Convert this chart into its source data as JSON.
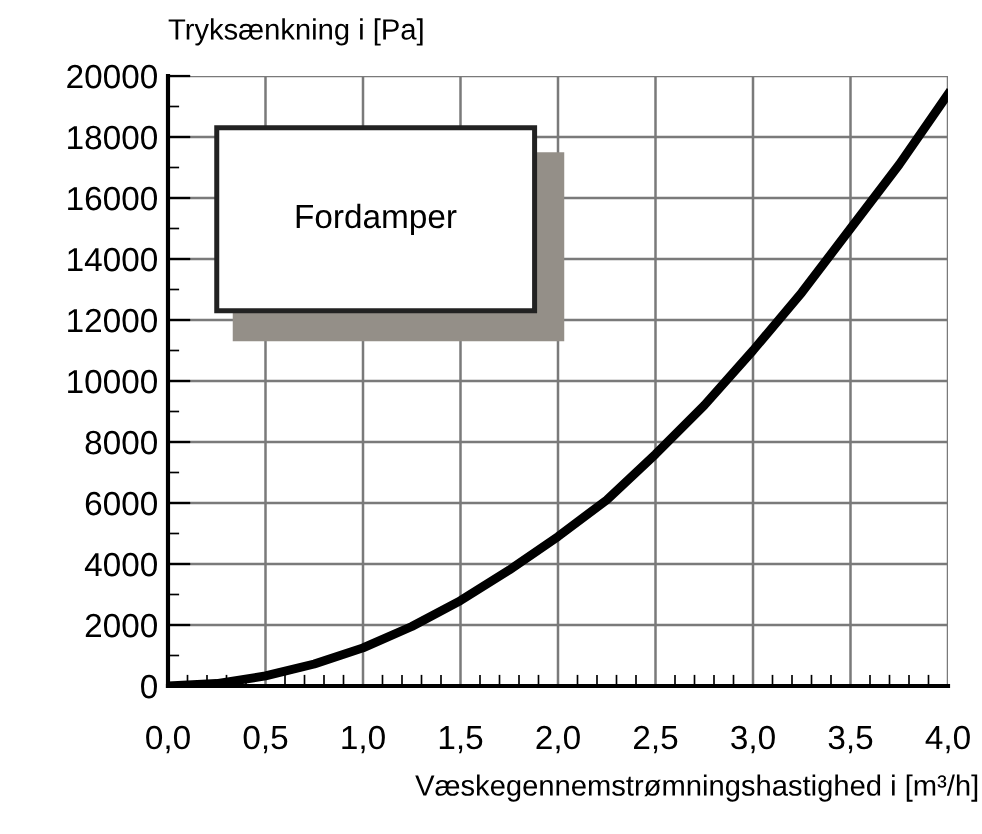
{
  "chart_data": {
    "type": "line",
    "xlabel": "Væskegennemstrømningshastighed i [m³/h]",
    "ylabel": "Tryksænkning i [Pa]",
    "annotations": [
      "Fordamper"
    ],
    "x": [
      0,
      0.25,
      0.5,
      0.75,
      1.0,
      1.25,
      1.5,
      1.75,
      2.0,
      2.25,
      2.5,
      2.75,
      3.0,
      3.25,
      3.5,
      3.75,
      4.0
    ],
    "series": [
      {
        "color": "#000000",
        "values": [
          0,
          80,
          330,
          720,
          1250,
          1950,
          2800,
          3800,
          4900,
          6100,
          7600,
          9200,
          11000,
          12900,
          15000,
          17100,
          19400
        ]
      }
    ],
    "xlim": [
      0,
      4
    ],
    "xticks": [
      {
        "value": 0,
        "label": "0,0"
      },
      {
        "value": 0.5,
        "label": "0,5"
      },
      {
        "value": 1,
        "label": "1,0"
      },
      {
        "value": 1.5,
        "label": "1,5"
      },
      {
        "value": 2,
        "label": "2,0"
      },
      {
        "value": 2.5,
        "label": "2,5"
      },
      {
        "value": 3,
        "label": "3,0"
      },
      {
        "value": 3.5,
        "label": "3,5"
      },
      {
        "value": 4,
        "label": "4,0"
      }
    ],
    "ylim": [
      0,
      20000
    ],
    "yticks": [
      0,
      2000,
      4000,
      6000,
      8000,
      10000,
      12000,
      14000,
      16000,
      18000,
      20000
    ],
    "grid": true,
    "legend": false,
    "marker": "none",
    "line_style": "solid"
  }
}
